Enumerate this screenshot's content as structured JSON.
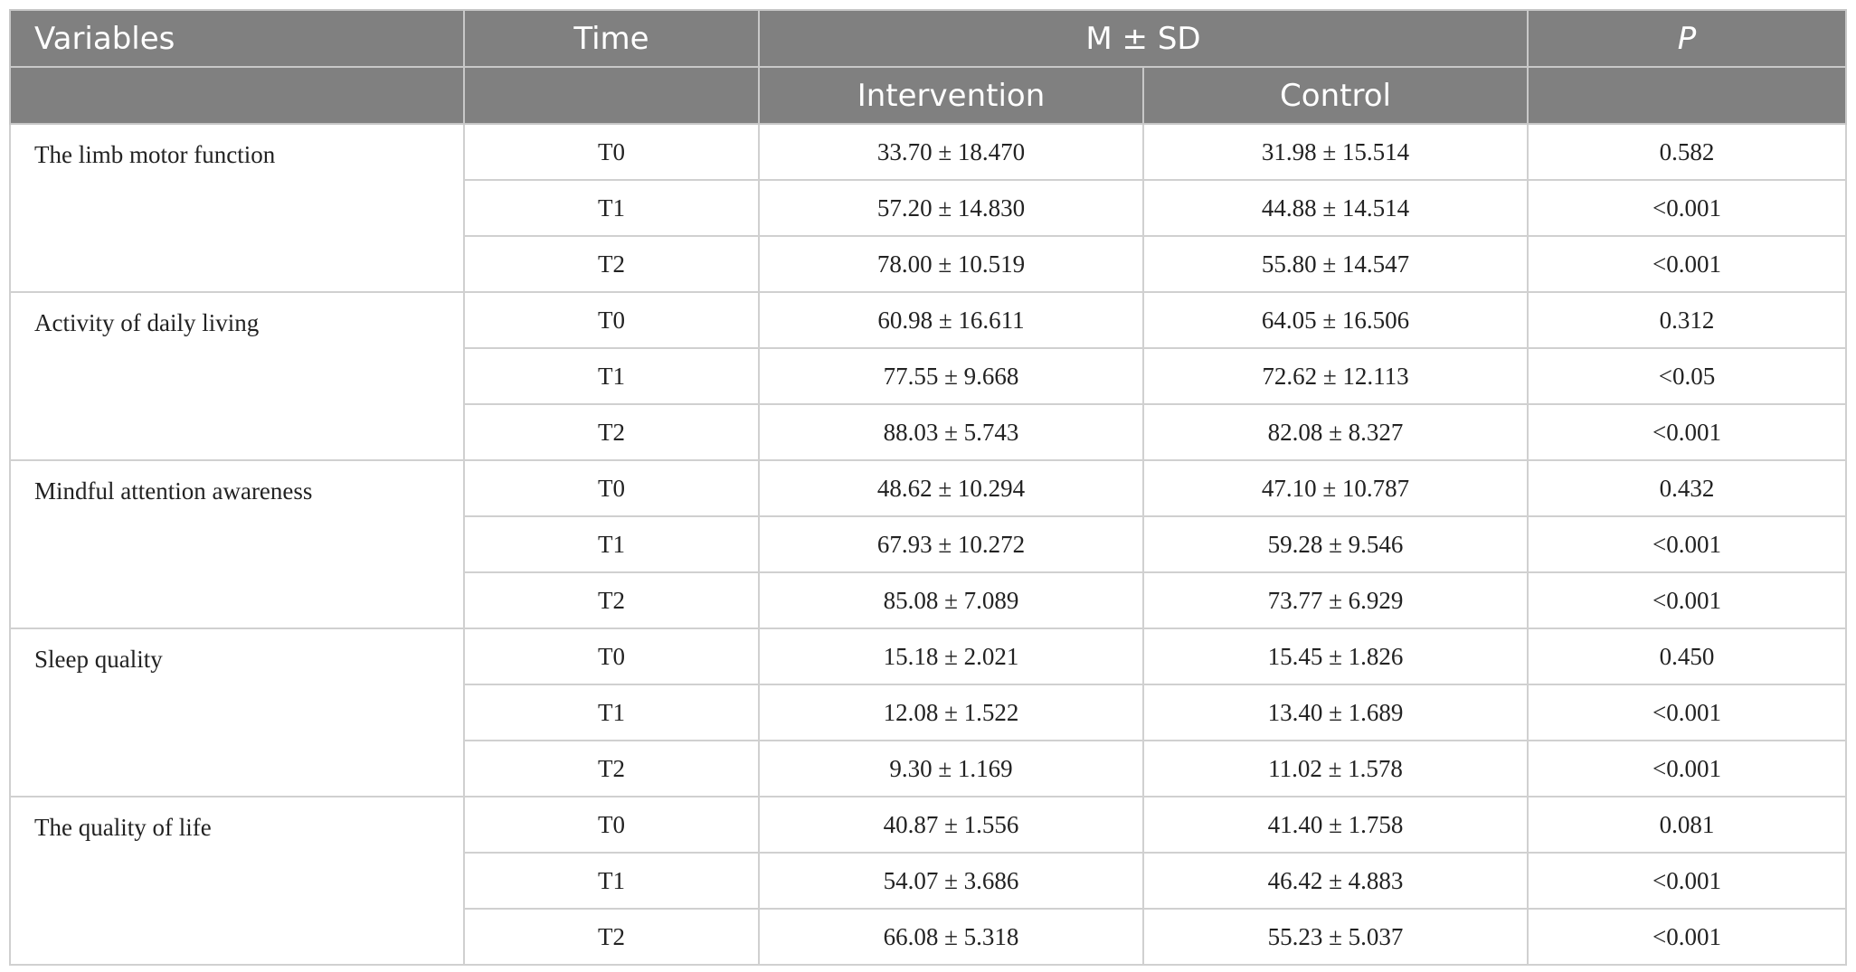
{
  "table": {
    "header": [
      "Variables",
      "Time",
      "M ± SD",
      "P"
    ],
    "subheader": [
      "Intervention",
      "Control"
    ],
    "groups": [
      {
        "variable": "The limb motor function",
        "rows": [
          [
            "T0",
            "33.70 ± 18.470",
            "31.98 ± 15.514",
            "0.582"
          ],
          [
            "T1",
            "57.20 ± 14.830",
            "44.88 ± 14.514",
            "<0.001"
          ],
          [
            "T2",
            "78.00 ± 10.519",
            "55.80 ± 14.547",
            "<0.001"
          ]
        ]
      },
      {
        "variable": "Activity of daily living",
        "rows": [
          [
            "T0",
            "60.98 ± 16.611",
            "64.05 ± 16.506",
            "0.312"
          ],
          [
            "T1",
            "77.55 ± 9.668",
            "72.62 ± 12.113",
            "<0.05"
          ],
          [
            "T2",
            "88.03 ± 5.743",
            "82.08 ± 8.327",
            "<0.001"
          ]
        ]
      },
      {
        "variable": "Mindful attention awareness",
        "rows": [
          [
            "T0",
            "48.62 ± 10.294",
            "47.10 ± 10.787",
            "0.432"
          ],
          [
            "T1",
            "67.93 ± 10.272",
            "59.28 ± 9.546",
            "<0.001"
          ],
          [
            "T2",
            "85.08 ± 7.089",
            "73.77 ± 6.929",
            "<0.001"
          ]
        ]
      },
      {
        "variable": "Sleep quality",
        "rows": [
          [
            "T0",
            "15.18 ± 2.021",
            "15.45 ± 1.826",
            "0.450"
          ],
          [
            "T1",
            "12.08 ± 1.522",
            "13.40 ± 1.689",
            "<0.001"
          ],
          [
            "T2",
            "9.30 ± 1.169",
            "11.02 ± 1.578",
            "<0.001"
          ]
        ]
      },
      {
        "variable": "The quality of life",
        "rows": [
          [
            "T0",
            "40.87 ± 1.556",
            "41.40 ± 1.758",
            "0.081"
          ],
          [
            "T1",
            "54.07 ± 3.686",
            "46.42 ± 4.883",
            "<0.001"
          ],
          [
            "T2",
            "66.08 ± 5.318",
            "55.23 ± 5.037",
            "<0.001"
          ]
        ]
      }
    ]
  }
}
